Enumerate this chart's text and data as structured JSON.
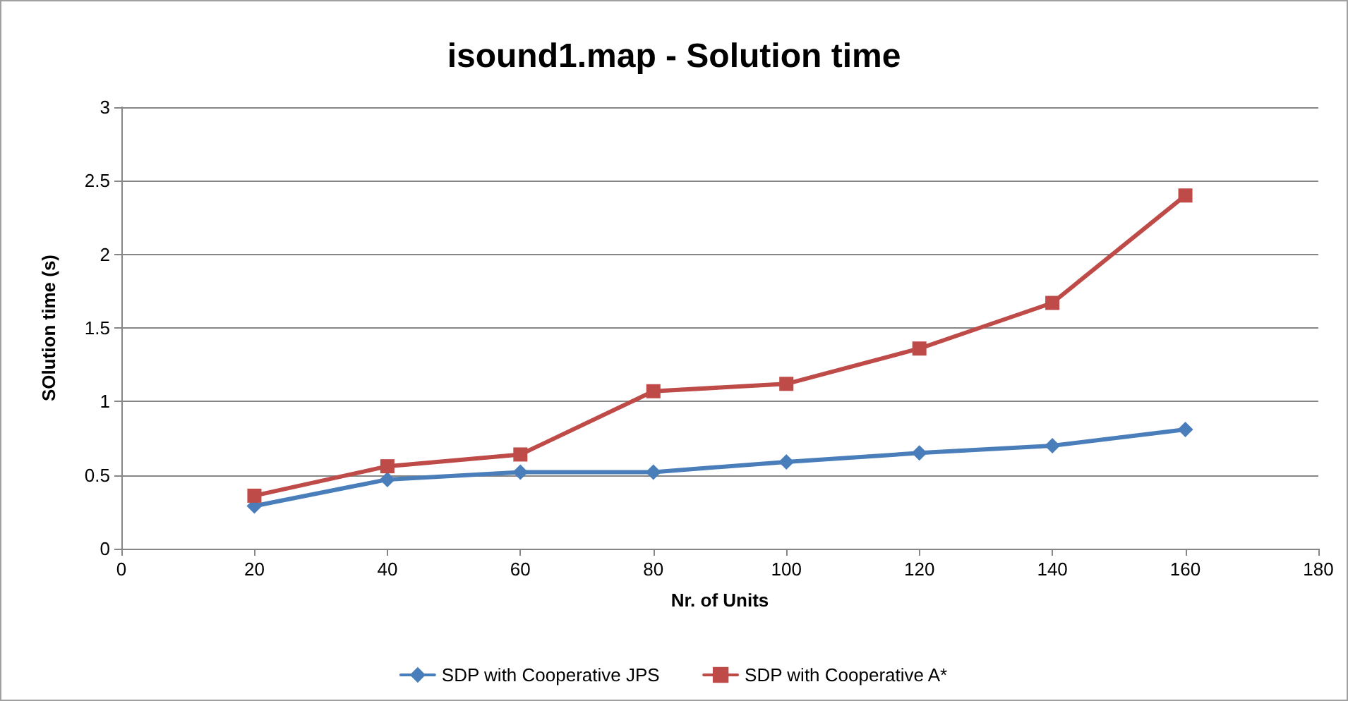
{
  "chart_data": {
    "type": "line",
    "title": "isound1.map - Solution time",
    "xlabel": "Nr. of Units",
    "ylabel": "SOlution time (s)",
    "x": [
      20,
      40,
      60,
      80,
      100,
      120,
      140,
      160
    ],
    "series": [
      {
        "name": "SDP with Cooperative JPS",
        "color": "#4a7ebb",
        "marker": "diamond",
        "values": [
          0.29,
          0.47,
          0.52,
          0.52,
          0.59,
          0.65,
          0.7,
          0.81
        ]
      },
      {
        "name": "SDP with Cooperative A*",
        "color": "#be4b48",
        "marker": "square",
        "values": [
          0.36,
          0.56,
          0.64,
          1.07,
          1.12,
          1.36,
          1.67,
          2.4
        ]
      }
    ],
    "xlim": [
      0,
      180
    ],
    "xticks": [
      0,
      20,
      40,
      60,
      80,
      100,
      120,
      140,
      160,
      180
    ],
    "ylim": [
      0,
      3
    ],
    "yticks": [
      0,
      0.5,
      1,
      1.5,
      2,
      2.5,
      3
    ],
    "grid": "y",
    "legend": "bottom",
    "line_style": "solid"
  }
}
